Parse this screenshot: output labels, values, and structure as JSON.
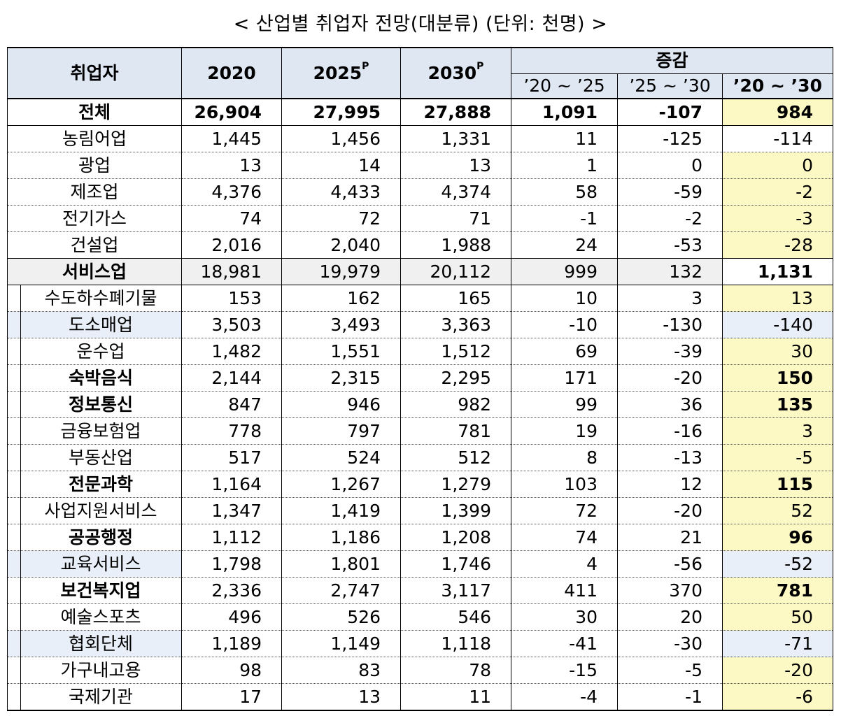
{
  "title": "< 산업별 취업자 전망(대분류) (단위: 천명) >",
  "header": {
    "col0": "취업자",
    "y2020": "2020",
    "y2025": "2025",
    "y2025_sup": "P",
    "y2030": "2030",
    "y2030_sup": "P",
    "change": "증감",
    "d1": "’20 ~ ’25",
    "d2": "’25 ~ ’30",
    "d3": "’20 ~ ’30"
  },
  "rows": [
    {
      "name": "전체",
      "v2020": "26,904",
      "v2025": "27,995",
      "v2030": "27,888",
      "d1": "1,091",
      "d2": "-107",
      "d3": "984"
    },
    {
      "name": "농림어업",
      "v2020": "1,445",
      "v2025": "1,456",
      "v2030": "1,331",
      "d1": "11",
      "d2": "-125",
      "d3": "-114"
    },
    {
      "name": "광업",
      "v2020": "13",
      "v2025": "14",
      "v2030": "13",
      "d1": "1",
      "d2": "0",
      "d3": "0"
    },
    {
      "name": "제조업",
      "v2020": "4,376",
      "v2025": "4,433",
      "v2030": "4,374",
      "d1": "58",
      "d2": "-59",
      "d3": "-2"
    },
    {
      "name": "전기가스",
      "v2020": "74",
      "v2025": "72",
      "v2030": "71",
      "d1": "-1",
      "d2": "-2",
      "d3": "-3"
    },
    {
      "name": "건설업",
      "v2020": "2,016",
      "v2025": "2,040",
      "v2030": "1,988",
      "d1": "24",
      "d2": "-53",
      "d3": "-28"
    },
    {
      "name": "서비스업",
      "v2020": "18,981",
      "v2025": "19,979",
      "v2030": "20,112",
      "d1": "999",
      "d2": "132",
      "d3": "1,131"
    },
    {
      "name": "수도하수폐기물",
      "v2020": "153",
      "v2025": "162",
      "v2030": "165",
      "d1": "10",
      "d2": "3",
      "d3": "13"
    },
    {
      "name": "도소매업",
      "v2020": "3,503",
      "v2025": "3,493",
      "v2030": "3,363",
      "d1": "-10",
      "d2": "-130",
      "d3": "-140"
    },
    {
      "name": "운수업",
      "v2020": "1,482",
      "v2025": "1,551",
      "v2030": "1,512",
      "d1": "69",
      "d2": "-39",
      "d3": "30"
    },
    {
      "name": "숙박음식",
      "v2020": "2,144",
      "v2025": "2,315",
      "v2030": "2,295",
      "d1": "171",
      "d2": "-20",
      "d3": "150"
    },
    {
      "name": "정보통신",
      "v2020": "847",
      "v2025": "946",
      "v2030": "982",
      "d1": "99",
      "d2": "36",
      "d3": "135"
    },
    {
      "name": "금융보험업",
      "v2020": "778",
      "v2025": "797",
      "v2030": "781",
      "d1": "19",
      "d2": "-16",
      "d3": "3"
    },
    {
      "name": "부동산업",
      "v2020": "517",
      "v2025": "524",
      "v2030": "512",
      "d1": "8",
      "d2": "-13",
      "d3": "-5"
    },
    {
      "name": "전문과학",
      "v2020": "1,164",
      "v2025": "1,267",
      "v2030": "1,279",
      "d1": "103",
      "d2": "12",
      "d3": "115"
    },
    {
      "name": "사업지원서비스",
      "v2020": "1,347",
      "v2025": "1,419",
      "v2030": "1,399",
      "d1": "72",
      "d2": "-20",
      "d3": "52"
    },
    {
      "name": "공공행정",
      "v2020": "1,112",
      "v2025": "1,186",
      "v2030": "1,208",
      "d1": "74",
      "d2": "21",
      "d3": "96"
    },
    {
      "name": "교육서비스",
      "v2020": "1,798",
      "v2025": "1,801",
      "v2030": "1,746",
      "d1": "4",
      "d2": "-56",
      "d3": "-52"
    },
    {
      "name": "보건복지업",
      "v2020": "2,336",
      "v2025": "2,747",
      "v2030": "3,117",
      "d1": "411",
      "d2": "370",
      "d3": "781"
    },
    {
      "name": "예술스포츠",
      "v2020": "496",
      "v2025": "526",
      "v2030": "546",
      "d1": "30",
      "d2": "20",
      "d3": "50"
    },
    {
      "name": "협회단체",
      "v2020": "1,189",
      "v2025": "1,149",
      "v2030": "1,118",
      "d1": "-41",
      "d2": "-30",
      "d3": "-71"
    },
    {
      "name": "가구내고용",
      "v2020": "98",
      "v2025": "83",
      "v2030": "78",
      "d1": "-15",
      "d2": "-5",
      "d3": "-20"
    },
    {
      "name": "국제기관",
      "v2020": "17",
      "v2025": "13",
      "v2030": "11",
      "d1": "-4",
      "d2": "-1",
      "d3": "-6"
    }
  ]
}
